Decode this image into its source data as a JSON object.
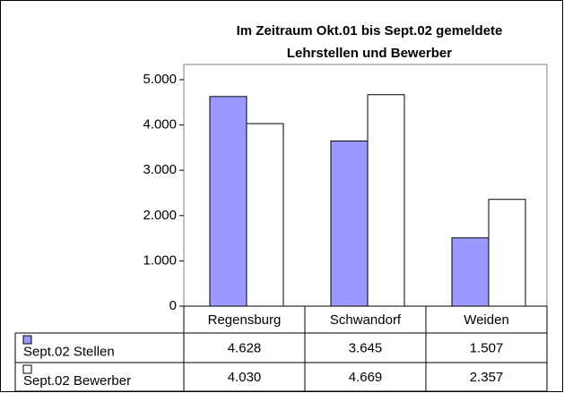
{
  "chart_data": {
    "type": "bar",
    "title": [
      "Im Zeitraum Okt.01 bis Sept.02 gemeldete",
      "Lehrstellen und Bewerber"
    ],
    "categories": [
      "Regensburg",
      "Schwandorf",
      "Weiden"
    ],
    "series": [
      {
        "name": "Sept.02 Stellen",
        "color": "#9999ff",
        "values": [
          4628,
          3645,
          1507
        ],
        "value_labels": [
          "4.628",
          "3.645",
          "1.507"
        ]
      },
      {
        "name": "Sept.02 Bewerber",
        "color": "#ffffff",
        "values": [
          4030,
          4669,
          2357
        ],
        "value_labels": [
          "4.030",
          "4.669",
          "2.357"
        ]
      }
    ],
    "ylim": [
      0,
      5000
    ],
    "yticks": [
      0,
      {
        "value": 1000,
        "label": "1.000"
      },
      {
        "value": 2000,
        "label": "2.000"
      },
      {
        "value": 3000,
        "label": "3.000"
      },
      {
        "value": 4000,
        "label": "4.000"
      },
      {
        "value": 5000,
        "label": "5.000"
      }
    ],
    "data_table": true
  }
}
